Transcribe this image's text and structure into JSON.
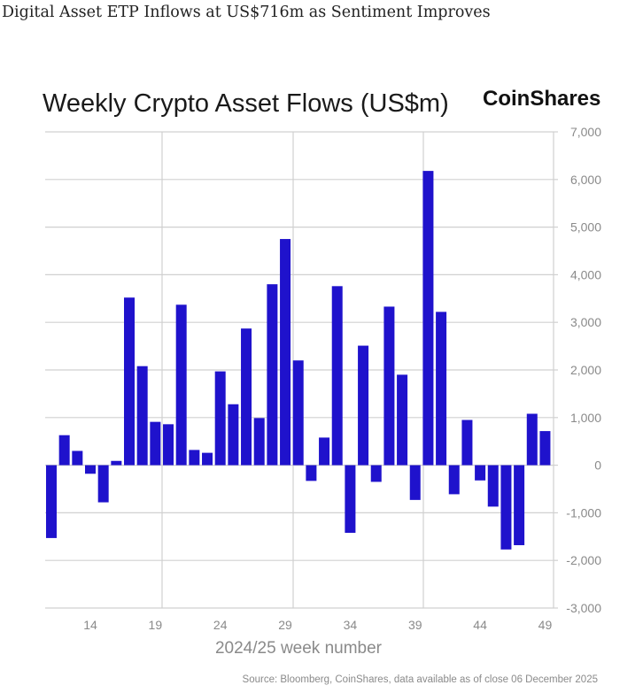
{
  "headline": "Digital Asset ETP Inflows at US$716m as Sentiment Improves",
  "logo_text": "CoinShares",
  "chart_data": {
    "type": "bar",
    "title": "Weekly Crypto Asset Flows (US$m)",
    "xlabel": "2024/25 week number",
    "ylabel": "",
    "source": "Source: Bloomberg, CoinShares, data available as of close 06 December 2025",
    "x": [
      11,
      12,
      13,
      14,
      15,
      16,
      17,
      18,
      19,
      20,
      21,
      22,
      23,
      24,
      25,
      26,
      27,
      28,
      29,
      30,
      31,
      32,
      33,
      34,
      35,
      36,
      37,
      38,
      39,
      40,
      41,
      42,
      43,
      44,
      45,
      46,
      47,
      48,
      49
    ],
    "values": [
      -1530,
      630,
      300,
      -180,
      -780,
      90,
      3520,
      2080,
      910,
      860,
      3370,
      320,
      260,
      1970,
      1280,
      2870,
      990,
      3800,
      4750,
      2200,
      -330,
      580,
      3760,
      -1420,
      2510,
      -350,
      3330,
      1900,
      -730,
      6180,
      3220,
      -610,
      950,
      -320,
      -870,
      -1770,
      -1680,
      1080,
      716
    ],
    "x_ticks": [
      "14",
      "19",
      "24",
      "29",
      "34",
      "39",
      "44",
      "49"
    ],
    "x_tick_values": [
      14,
      19,
      24,
      29,
      34,
      39,
      44,
      49
    ],
    "y_ticks": [
      "7,000",
      "6,000",
      "5,000",
      "4,000",
      "3,000",
      "2,000",
      "1,000",
      "0",
      "-1,000",
      "-2,000",
      "-3,000"
    ],
    "y_tick_values": [
      7000,
      6000,
      5000,
      4000,
      3000,
      2000,
      1000,
      0,
      -1000,
      -2000,
      -3000
    ],
    "ylim": [
      -3000,
      7000
    ],
    "y_axis_position": "right",
    "grid": true,
    "bar_color": "#1f12cc",
    "grid_color": "#d0d0d0"
  }
}
